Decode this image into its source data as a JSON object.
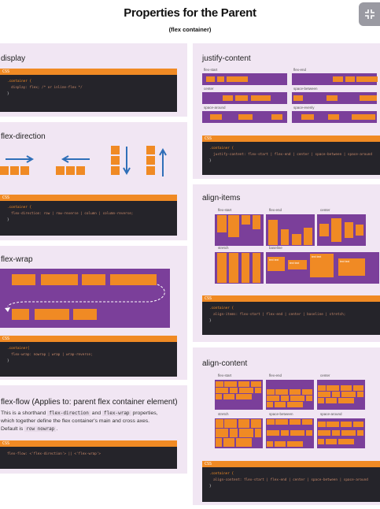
{
  "header": {
    "title": "Properties for the Parent",
    "subtitle": "(flex container)",
    "collapse_icon": "collapse-icon"
  },
  "code_tag": "CSS",
  "display": {
    "title": "display",
    "code": [
      ".container {",
      "  display: flex; /* or inline-flex */",
      "}"
    ]
  },
  "flex_direction": {
    "title": "flex-direction",
    "code": [
      ".container {",
      "  flex-direction: row | row-reverse | column | column-reverse;",
      "}"
    ]
  },
  "flex_wrap": {
    "title": "flex-wrap",
    "code": [
      ".container{",
      "  flex-wrap: nowrap | wrap | wrap-reverse;",
      "}"
    ]
  },
  "flex_flow": {
    "title": "flex-flow (Applies to: parent flex container element)",
    "desc_1": "This is a shorthand",
    "desc_code_1": "flex-direction",
    "desc_2": "and",
    "desc_code_2": "flex-wrap",
    "desc_3": "properties,",
    "desc_line2": "which together define the flex container's main and cross axes.",
    "desc_line3": "Default is",
    "desc_code_3": "row nowrap",
    "desc_end": ".",
    "code": [
      "flex-flow: <'flex-direction'> || <'flex-wrap'>"
    ]
  },
  "justify_content": {
    "title": "justify-content",
    "labels": [
      "flex-start",
      "flex-end",
      "center",
      "space-between",
      "space-around",
      "space-evenly"
    ],
    "code": [
      ".container {",
      "  justify-content: flex-start | flex-end | center | space-between | space-around",
      "}"
    ]
  },
  "align_items": {
    "title": "align-items",
    "labels": [
      "flex-start",
      "flex-end",
      "center",
      "stretch",
      "baseline"
    ],
    "baseline_text": [
      "text text",
      "text text",
      "text text",
      "text text",
      "text text"
    ],
    "code": [
      ".container {",
      "  align-items: flex-start | flex-end | center | baseline | stretch;",
      "}"
    ]
  },
  "align_content": {
    "title": "align-content",
    "labels": [
      "flex-start",
      "flex-end",
      "center",
      "stretch",
      "space-between",
      "space-around"
    ],
    "code": [
      ".container {",
      "  align-content: flex-start | flex-end | center | space-between | space-around",
      "}"
    ]
  }
}
